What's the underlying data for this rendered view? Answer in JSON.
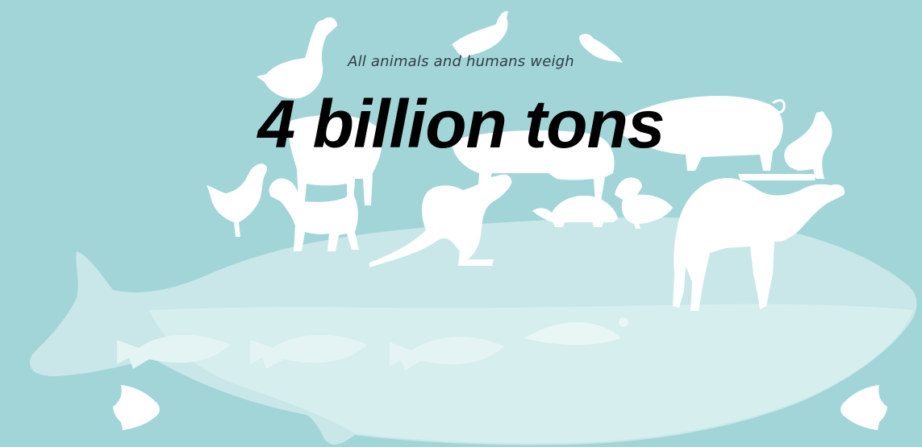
{
  "subtitle": "All animals and humans weigh",
  "headline": "4 billion tons",
  "colors": {
    "background": "#a2d5d8",
    "silhouette": "#ffffff",
    "whale": "#c9e7e8",
    "whale_belly": "#d7eeee",
    "fish": "#e4f4f4",
    "subtitle_text": "#2f3e45",
    "headline_text": "#000000"
  },
  "illustration": {
    "icons": [
      "whale-icon",
      "goose-icon",
      "pigeon-icon",
      "sparrow-icon",
      "cow-icon",
      "horse-icon",
      "pig-icon",
      "cat-icon",
      "chicken-icon",
      "dog-icon",
      "kangaroo-icon",
      "tortoise-icon",
      "duckling-icon",
      "camel-icon",
      "trout-icon",
      "angelfish-icon"
    ]
  }
}
